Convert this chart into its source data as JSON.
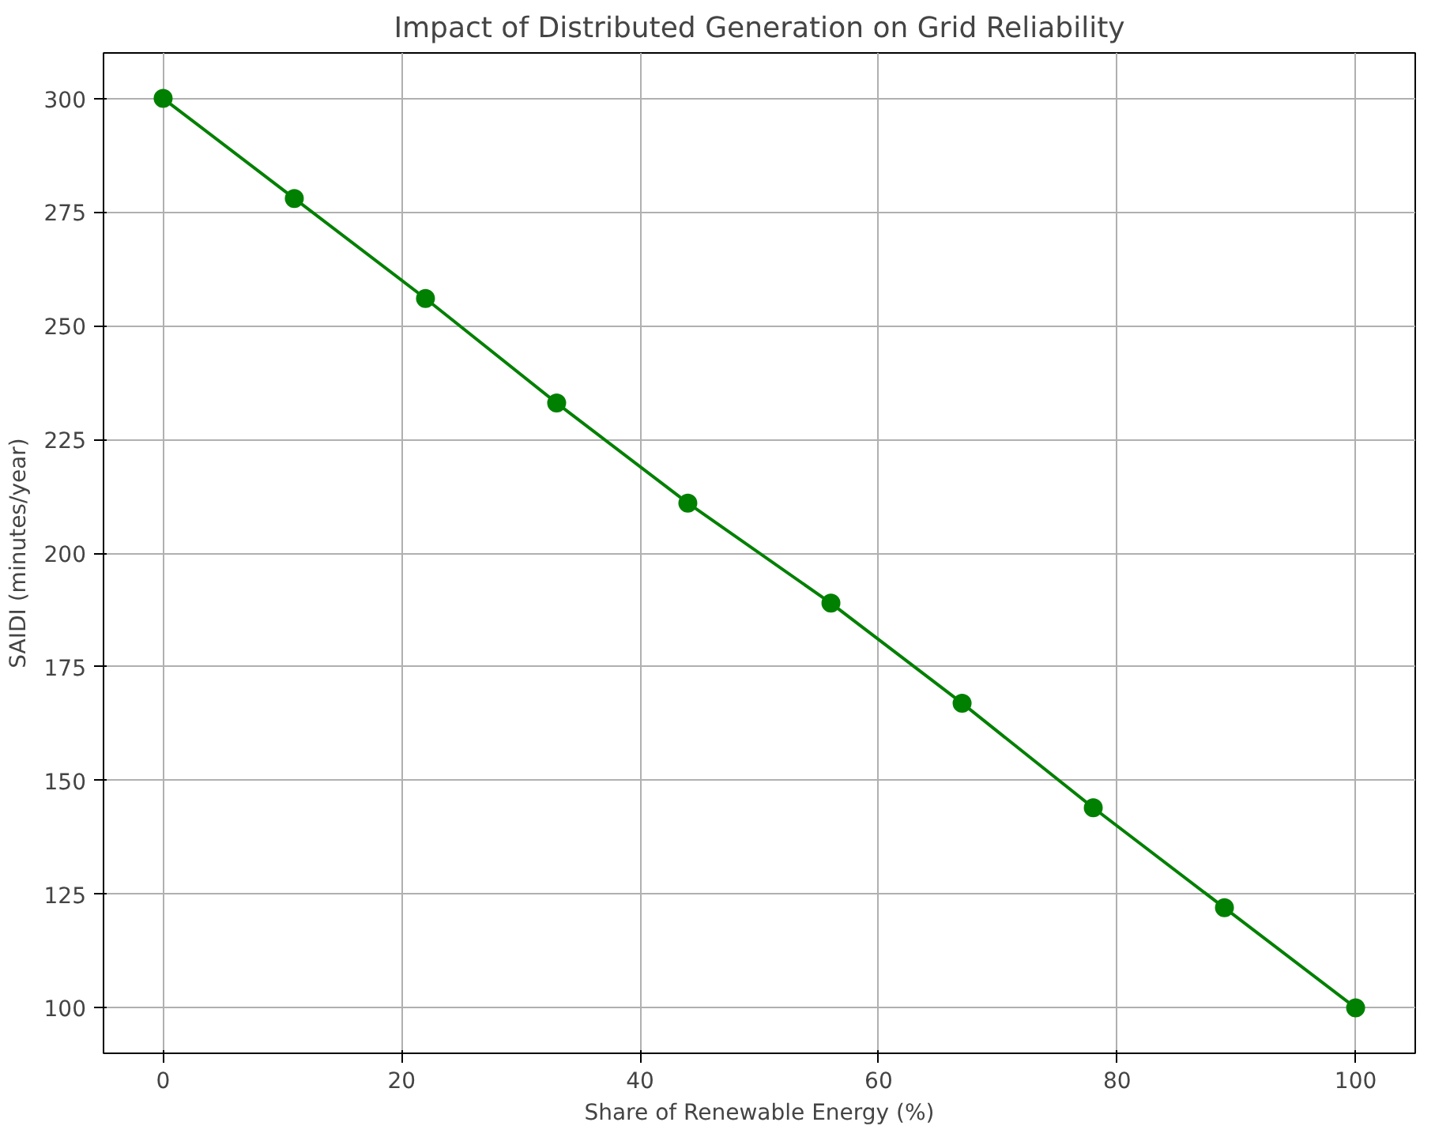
{
  "chart_data": {
    "type": "line",
    "title": "Impact of Distributed Generation on Grid Reliability",
    "xlabel": "Share of Renewable Energy (%)",
    "ylabel": "SAIDI (minutes/year)",
    "x": [
      0,
      11,
      22,
      33,
      44,
      56,
      67,
      78,
      89,
      100
    ],
    "series": [
      {
        "color": "#008000",
        "values": [
          300,
          278,
          256,
          233,
          211,
          189,
          167,
          144,
          122,
          100
        ]
      }
    ],
    "xlim": [
      -5,
      105
    ],
    "ylim": [
      90,
      310
    ],
    "xticks": [
      0,
      20,
      40,
      60,
      80,
      100
    ],
    "yticks": [
      100,
      125,
      150,
      175,
      200,
      225,
      250,
      275,
      300
    ],
    "grid": true,
    "marker": "circle",
    "line_style": "solid"
  }
}
